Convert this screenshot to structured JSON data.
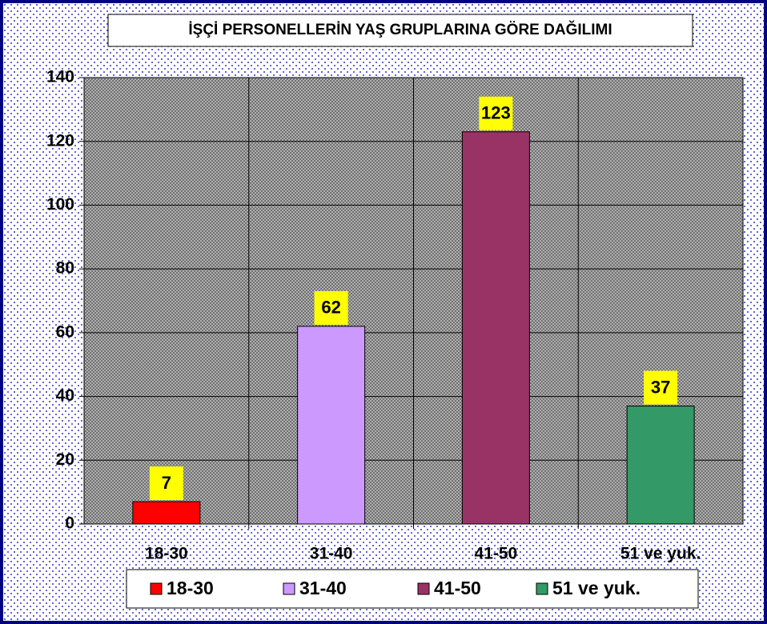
{
  "chart_data": {
    "type": "bar",
    "title": "İŞÇİ PERSONELLERİN YAŞ GRUPLARINA GÖRE DAĞILIMI",
    "categories": [
      "18-30",
      "31-40",
      "41-50",
      "51 ve yuk."
    ],
    "values": [
      7,
      62,
      123,
      37
    ],
    "colors": [
      "#ff0000",
      "#cc99ff",
      "#993366",
      "#339966"
    ],
    "ylim": [
      0,
      140
    ],
    "yticks": [
      0,
      20,
      40,
      60,
      80,
      100,
      120,
      140
    ],
    "grid": true,
    "legend": "bottom"
  }
}
